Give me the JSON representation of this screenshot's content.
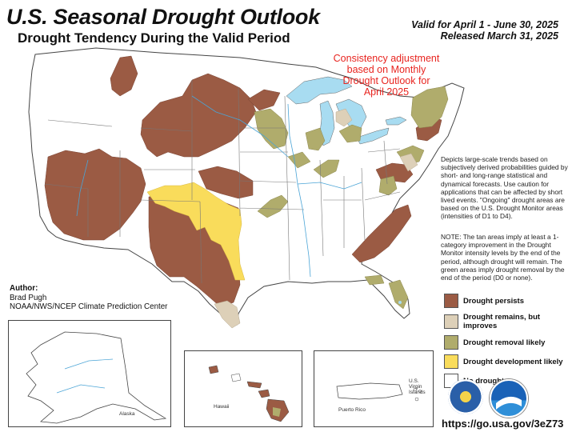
{
  "header": {
    "title": "U.S. Seasonal Drought Outlook",
    "subtitle": "Drought Tendency During the Valid Period",
    "valid_line": "Valid for April 1 - June 30, 2025",
    "released_line": "Released March 31, 2025"
  },
  "adjustment_note": [
    "Consistency adjustment",
    "based on Monthly",
    "Drought Outlook for",
    "April 2025"
  ],
  "description": "Depicts large-scale trends based on subjectively derived probabilities guided by short- and long-range statistical and dynamical forecasts. Use caution for applications that can be affected by short lived events. \"Ongoing\" drought areas are based on the U.S. Drought Monitor areas (intensities of D1 to D4).",
  "note": "NOTE: The tan areas imply at least a 1-category improvement in the Drought Monitor intensity levels by the end of the period, although drought will remain. The green areas imply drought removal by the end of the period (D0 or none).",
  "legend": {
    "items": [
      {
        "label": "Drought persists",
        "color": "#9b5b44"
      },
      {
        "label": "Drought remains, but improves",
        "color": "#ddd0b8"
      },
      {
        "label": "Drought removal likely",
        "color": "#b0ac6c"
      },
      {
        "label": "Drought development likely",
        "color": "#f9dc5b"
      },
      {
        "label": "No drought",
        "color": "#ffffff"
      }
    ]
  },
  "author": {
    "heading": "Author:",
    "name": "Brad Pugh",
    "org": "NOAA/NWS/NCEP Climate Prediction Center"
  },
  "insets": {
    "alaska": "Alaska",
    "hawaii": "Hawaii",
    "puerto_rico": "Puerto Rico",
    "virgin_islands": [
      "U.S. Virgin",
      "Islands"
    ]
  },
  "url": "https://go.usa.gov/3eZ73",
  "colors": {
    "persist": "#9b5b44",
    "improve": "#ddd0b8",
    "removal": "#b0ac6c",
    "development": "#f9dc5b",
    "water": "#a8dcf1",
    "boundary": "#555555",
    "river": "#4aa4d6"
  },
  "logos": [
    "doc-seal-icon",
    "noaa-logo-icon"
  ]
}
